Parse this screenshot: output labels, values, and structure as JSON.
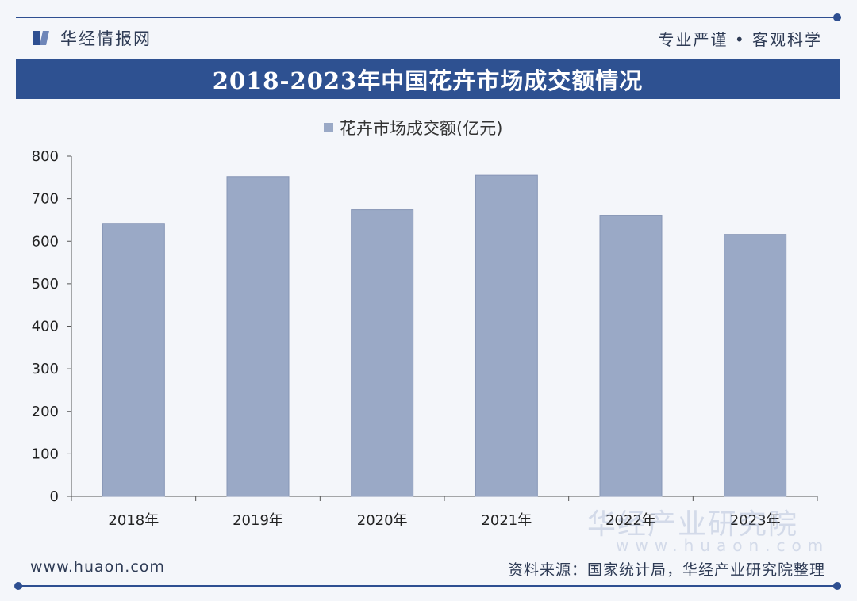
{
  "header": {
    "brand": "华经情报网",
    "slogan": "专业严谨 • 客观科学"
  },
  "title": "2018-2023年中国花卉市场成交额情况",
  "footer": {
    "url": "www.huaon.com",
    "source": "资料来源：国家统计局，华经产业研究院整理"
  },
  "watermark": {
    "corner_main": "华经产业研究院",
    "corner_sub": "www.huaon.com"
  },
  "colors": {
    "bar": "#9aa9c6",
    "bar_stroke": "#8796b6",
    "title_bg": "#2e5191",
    "accent": "#2e4f91"
  },
  "chart_data": {
    "type": "bar",
    "categories": [
      "2018年",
      "2019年",
      "2020年",
      "2021年",
      "2022年",
      "2023年"
    ],
    "series": [
      {
        "name": "花卉市场成交额(亿元)",
        "values": [
          642,
          752,
          674,
          755,
          661,
          616
        ]
      }
    ],
    "ylim": [
      0,
      800
    ],
    "yticks": [
      0,
      100,
      200,
      300,
      400,
      500,
      600,
      700,
      800
    ],
    "legend": "top-center",
    "grid": false
  }
}
